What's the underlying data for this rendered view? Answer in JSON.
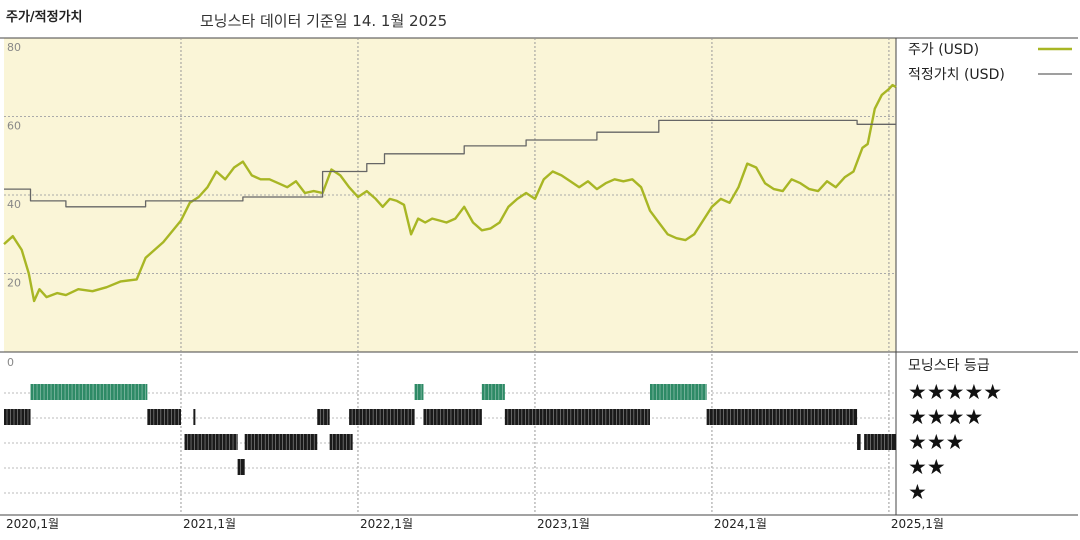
{
  "chart_data": {
    "type": "line",
    "title": "주가/적정가치",
    "subtitle": "모닝스타 데이터 기준일 14. 1월 2025",
    "y_range": [
      0,
      80
    ],
    "y_ticks": [
      {
        "value": 80,
        "label": "80"
      },
      {
        "value": 60,
        "label": "60"
      },
      {
        "value": 40,
        "label": "40"
      },
      {
        "value": 20,
        "label": "20"
      },
      {
        "value": 0,
        "label": "0"
      }
    ],
    "x_range": [
      2020.0,
      2025.04
    ],
    "x_ticks": [
      {
        "value": 2020,
        "label": "2020,1월"
      },
      {
        "value": 2021,
        "label": "2021,1월"
      },
      {
        "value": 2022,
        "label": "2022,1월"
      },
      {
        "value": 2023,
        "label": "2023,1월"
      },
      {
        "value": 2024,
        "label": "2024,1월"
      },
      {
        "value": 2025,
        "label": "2025,1월"
      }
    ],
    "grid": true,
    "legend_position": "right",
    "colors": {
      "price": "#a8b624",
      "fair_value": "#666666",
      "plot_bg": "#faf5d7",
      "stars": "#1a1a1a",
      "stars5": "#2e8a66"
    },
    "series": [
      {
        "name": "주가 (USD)",
        "key": "price",
        "points": [
          [
            2020.0,
            27.5
          ],
          [
            2020.05,
            29.5
          ],
          [
            2020.1,
            26
          ],
          [
            2020.14,
            20
          ],
          [
            2020.17,
            13
          ],
          [
            2020.2,
            16
          ],
          [
            2020.24,
            14
          ],
          [
            2020.3,
            15
          ],
          [
            2020.35,
            14.5
          ],
          [
            2020.42,
            16
          ],
          [
            2020.5,
            15.5
          ],
          [
            2020.58,
            16.5
          ],
          [
            2020.66,
            18
          ],
          [
            2020.75,
            18.5
          ],
          [
            2020.8,
            24
          ],
          [
            2020.9,
            28
          ],
          [
            2021.0,
            33.5
          ],
          [
            2021.05,
            38
          ],
          [
            2021.1,
            39.5
          ],
          [
            2021.15,
            42
          ],
          [
            2021.2,
            46
          ],
          [
            2021.25,
            44
          ],
          [
            2021.3,
            47
          ],
          [
            2021.35,
            48.5
          ],
          [
            2021.4,
            45
          ],
          [
            2021.45,
            44
          ],
          [
            2021.5,
            44
          ],
          [
            2021.55,
            43
          ],
          [
            2021.6,
            42
          ],
          [
            2021.65,
            43.5
          ],
          [
            2021.7,
            40.5
          ],
          [
            2021.75,
            41
          ],
          [
            2021.8,
            40.5
          ],
          [
            2021.85,
            46.5
          ],
          [
            2021.9,
            45
          ],
          [
            2021.95,
            42
          ],
          [
            2022.0,
            39.5
          ],
          [
            2022.05,
            41
          ],
          [
            2022.1,
            39
          ],
          [
            2022.14,
            37
          ],
          [
            2022.18,
            39
          ],
          [
            2022.22,
            38.5
          ],
          [
            2022.26,
            37.5
          ],
          [
            2022.3,
            30
          ],
          [
            2022.34,
            34
          ],
          [
            2022.38,
            33
          ],
          [
            2022.42,
            34
          ],
          [
            2022.46,
            33.5
          ],
          [
            2022.5,
            33
          ],
          [
            2022.55,
            34
          ],
          [
            2022.6,
            37
          ],
          [
            2022.65,
            33
          ],
          [
            2022.7,
            31
          ],
          [
            2022.75,
            31.5
          ],
          [
            2022.8,
            33
          ],
          [
            2022.85,
            37
          ],
          [
            2022.9,
            39
          ],
          [
            2022.95,
            40.5
          ],
          [
            2023.0,
            39
          ],
          [
            2023.05,
            44
          ],
          [
            2023.1,
            46
          ],
          [
            2023.15,
            45
          ],
          [
            2023.2,
            43.5
          ],
          [
            2023.25,
            42
          ],
          [
            2023.3,
            43.5
          ],
          [
            2023.35,
            41.5
          ],
          [
            2023.4,
            43
          ],
          [
            2023.45,
            44
          ],
          [
            2023.5,
            43.5
          ],
          [
            2023.55,
            44
          ],
          [
            2023.6,
            42
          ],
          [
            2023.65,
            36
          ],
          [
            2023.7,
            33
          ],
          [
            2023.75,
            30
          ],
          [
            2023.8,
            29
          ],
          [
            2023.85,
            28.5
          ],
          [
            2023.9,
            30
          ],
          [
            2023.95,
            33.5
          ],
          [
            2024.0,
            37
          ],
          [
            2024.05,
            39
          ],
          [
            2024.1,
            38
          ],
          [
            2024.15,
            42
          ],
          [
            2024.2,
            48
          ],
          [
            2024.25,
            47
          ],
          [
            2024.3,
            43
          ],
          [
            2024.35,
            41.5
          ],
          [
            2024.4,
            41
          ],
          [
            2024.45,
            44
          ],
          [
            2024.5,
            43
          ],
          [
            2024.55,
            41.5
          ],
          [
            2024.6,
            41
          ],
          [
            2024.65,
            43.5
          ],
          [
            2024.7,
            42
          ],
          [
            2024.75,
            44.5
          ],
          [
            2024.8,
            46
          ],
          [
            2024.85,
            52
          ],
          [
            2024.88,
            53
          ],
          [
            2024.92,
            62
          ],
          [
            2024.96,
            65.5
          ],
          [
            2025.0,
            67
          ],
          [
            2025.02,
            68
          ],
          [
            2025.04,
            67.5
          ]
        ]
      },
      {
        "name": "적정가치 (USD)",
        "key": "fair_value",
        "points": [
          [
            2020.0,
            41.5
          ],
          [
            2020.15,
            41.5
          ],
          [
            2020.15,
            38.5
          ],
          [
            2020.35,
            38.5
          ],
          [
            2020.35,
            37
          ],
          [
            2020.8,
            37
          ],
          [
            2020.8,
            38.5
          ],
          [
            2021.35,
            38.5
          ],
          [
            2021.35,
            39.5
          ],
          [
            2021.8,
            39.5
          ],
          [
            2021.8,
            46
          ],
          [
            2022.05,
            46
          ],
          [
            2022.05,
            48
          ],
          [
            2022.15,
            48
          ],
          [
            2022.15,
            50.5
          ],
          [
            2022.6,
            50.5
          ],
          [
            2022.6,
            52.5
          ],
          [
            2022.95,
            52.5
          ],
          [
            2022.95,
            54
          ],
          [
            2023.35,
            54
          ],
          [
            2023.35,
            56
          ],
          [
            2023.7,
            56
          ],
          [
            2023.7,
            59
          ],
          [
            2024.82,
            59
          ],
          [
            2024.82,
            58
          ],
          [
            2025.04,
            58
          ]
        ]
      }
    ],
    "rating_panel": {
      "title": "모닝스타 등급",
      "rows": [
        {
          "stars": 5,
          "label": "★★★★★",
          "segments": [
            [
              2020.15,
              2020.81
            ],
            [
              2022.32,
              2022.37
            ],
            [
              2022.7,
              2022.83
            ],
            [
              2023.65,
              2023.97
            ]
          ]
        },
        {
          "stars": 4,
          "label": "★★★★",
          "segments": [
            [
              2020.0,
              2020.15
            ],
            [
              2020.81,
              2021.0
            ],
            [
              2021.07,
              2021.08
            ],
            [
              2021.77,
              2021.84
            ],
            [
              2021.95,
              2022.32
            ],
            [
              2022.37,
              2022.7
            ],
            [
              2022.83,
              2023.65
            ],
            [
              2023.97,
              2024.82
            ]
          ]
        },
        {
          "stars": 3,
          "label": "★★★",
          "segments": [
            [
              2021.02,
              2021.32
            ],
            [
              2021.36,
              2021.77
            ],
            [
              2021.84,
              2021.97
            ],
            [
              2024.82,
              2024.84
            ],
            [
              2024.86,
              2025.04
            ]
          ]
        },
        {
          "stars": 2,
          "label": "★★",
          "segments": [
            [
              2021.32,
              2021.36
            ]
          ]
        },
        {
          "stars": 1,
          "label": "★",
          "segments": []
        }
      ]
    }
  }
}
